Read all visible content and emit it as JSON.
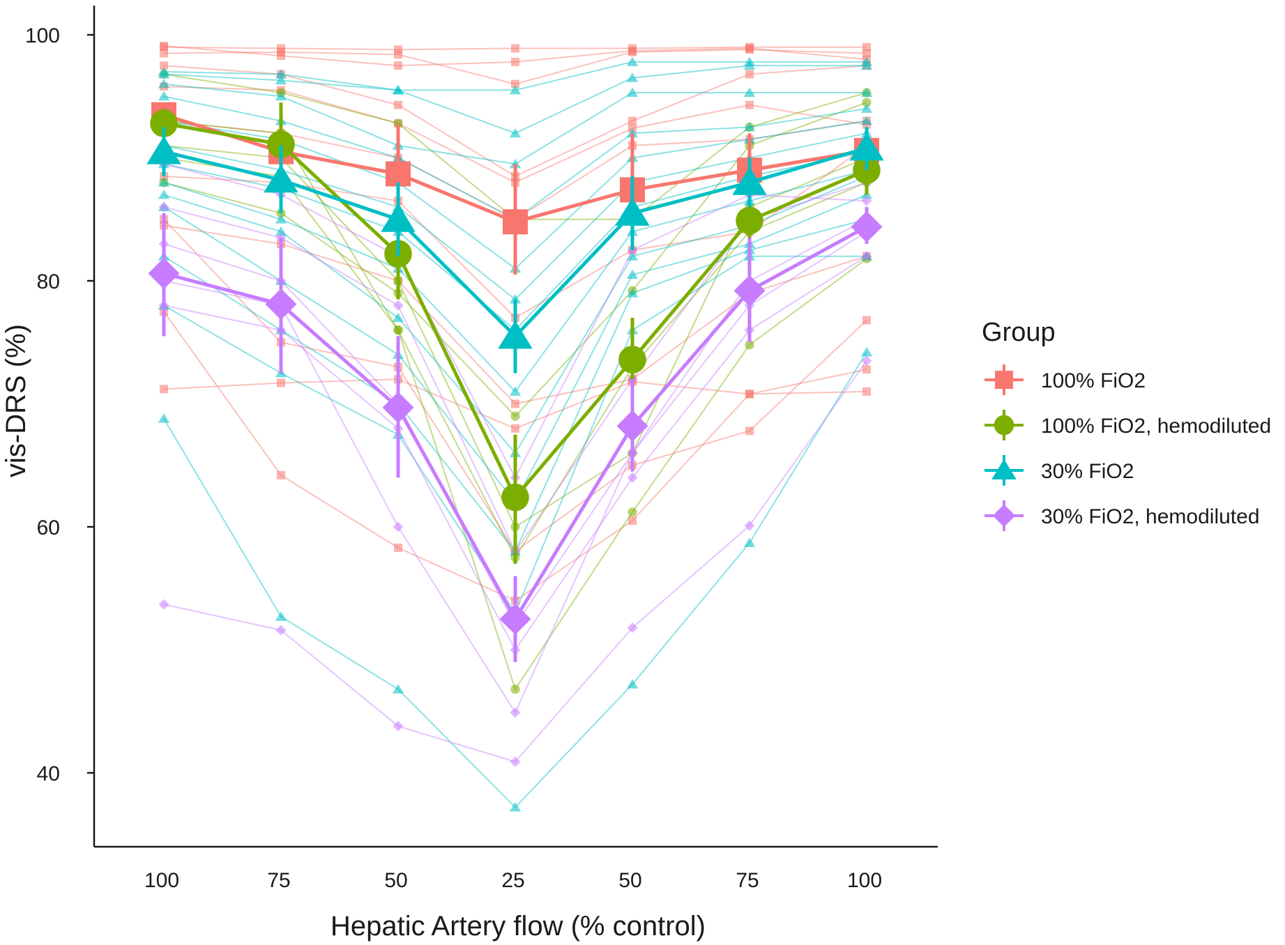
{
  "chart_data": {
    "type": "line",
    "title": "",
    "xlabel": "Hepatic Artery flow (% control)",
    "ylabel": "vis-DRS (%)",
    "x_tick_labels": [
      "100",
      "75",
      "50",
      "25",
      "50",
      "75",
      "100"
    ],
    "y_ticks": [
      40,
      60,
      80,
      100
    ],
    "ylim": [
      33,
      102
    ],
    "grid": false,
    "legend": {
      "title": "Group",
      "position": "right",
      "entries": [
        {
          "name": "100% FiO2",
          "color": "#F8766D",
          "marker": "square"
        },
        {
          "name": "100% FiO2, hemodiluted",
          "color": "#7CAE00",
          "marker": "circle"
        },
        {
          "name": "30% FiO2",
          "color": "#00BFC4",
          "marker": "triangle"
        },
        {
          "name": "30% FiO2, hemodiluted",
          "color": "#C77CFF",
          "marker": "diamond"
        }
      ]
    },
    "series": [
      {
        "name": "100% FiO2",
        "color": "#F8766D",
        "marker": "square",
        "mean": [
          93.5,
          90.5,
          88.7,
          84.8,
          87.4,
          89.0,
          90.6
        ],
        "error": [
          [
            92.5,
            94.5
          ],
          [
            86.5,
            94.5
          ],
          [
            84.7,
            92.7
          ],
          [
            80.5,
            89.5
          ],
          [
            82.5,
            92.0
          ],
          [
            86.0,
            92.0
          ],
          [
            88.5,
            92.5
          ]
        ],
        "individuals": [
          [
            99.0,
            98.9,
            98.8,
            98.9,
            98.9,
            99.0,
            99.0
          ],
          [
            98.5,
            98.6,
            98.4,
            96.0,
            98.6,
            98.8,
            98.5
          ],
          [
            99.1,
            98.3,
            97.5,
            97.8,
            98.7,
            98.9,
            98.0
          ],
          [
            97.5,
            96.8,
            94.3,
            88.5,
            93.0,
            96.8,
            97.5
          ],
          [
            95.8,
            95.5,
            92.8,
            88.0,
            92.4,
            94.3,
            92.7
          ],
          [
            93.0,
            92.0,
            90.0,
            85.0,
            91.0,
            91.5,
            93.0
          ],
          [
            88.5,
            88.0,
            86.5,
            77.0,
            82.5,
            84.0,
            91.0
          ],
          [
            84.5,
            83.0,
            80.0,
            70.0,
            72.0,
            79.0,
            82.0
          ],
          [
            71.2,
            71.7,
            72.0,
            68.0,
            71.8,
            70.8,
            71.0
          ],
          [
            85.0,
            75.0,
            73.0,
            58.0,
            65.0,
            67.8,
            76.8
          ],
          [
            77.5,
            64.2,
            58.3,
            54.0,
            60.5,
            70.8,
            72.8
          ]
        ]
      },
      {
        "name": "100% FiO2, hemodiluted",
        "color": "#7CAE00",
        "marker": "circle",
        "mean": [
          92.8,
          91.1,
          82.2,
          62.4,
          73.6,
          84.9,
          89.0
        ],
        "error": [
          [
            91.5,
            94.0
          ],
          [
            87.5,
            94.5
          ],
          [
            78.5,
            86.5
          ],
          [
            57.0,
            67.5
          ],
          [
            70.0,
            77.0
          ],
          [
            81.5,
            88.5
          ],
          [
            87.0,
            91.0
          ]
        ],
        "individuals": [
          [
            96.8,
            95.3,
            92.8,
            85.0,
            85.0,
            92.5,
            95.3
          ],
          [
            88.0,
            85.5,
            79.0,
            69.0,
            79.2,
            91.0,
            94.5
          ],
          [
            93.0,
            92.0,
            76.0,
            57.5,
            73.0,
            84.0,
            88.0
          ],
          [
            91.0,
            90.0,
            80.0,
            60.0,
            66.0,
            86.0,
            90.0
          ],
          [
            90.0,
            88.5,
            76.0,
            46.8,
            61.2,
            74.8,
            81.8
          ]
        ]
      },
      {
        "name": "30% FiO2",
        "color": "#00BFC4",
        "marker": "triangle",
        "mean": [
          90.5,
          88.2,
          85.0,
          75.5,
          85.5,
          88.0,
          90.8
        ],
        "error": [
          [
            88.5,
            92.5
          ],
          [
            85.5,
            91.0
          ],
          [
            82.0,
            88.0
          ],
          [
            72.5,
            78.5
          ],
          [
            82.5,
            88.5
          ],
          [
            86.0,
            90.0
          ],
          [
            89.0,
            92.5
          ]
        ],
        "individuals": [
          [
            97.0,
            96.8,
            95.5,
            95.5,
            97.8,
            97.8,
            97.8
          ],
          [
            96.8,
            96.3,
            95.5,
            92.0,
            96.5,
            97.5,
            97.5
          ],
          [
            96.0,
            95.0,
            91.0,
            89.5,
            95.3,
            95.3,
            95.3
          ],
          [
            95.0,
            93.0,
            90.0,
            85.0,
            92.0,
            92.5,
            94.0
          ],
          [
            93.0,
            91.5,
            88.0,
            81.0,
            90.0,
            91.5,
            93.0
          ],
          [
            91.0,
            89.0,
            86.0,
            78.5,
            88.0,
            90.0,
            92.0
          ],
          [
            89.5,
            87.5,
            84.0,
            76.0,
            86.0,
            88.5,
            90.5
          ],
          [
            88.0,
            85.0,
            81.0,
            71.0,
            84.0,
            86.5,
            89.0
          ],
          [
            87.0,
            84.0,
            77.0,
            66.0,
            82.0,
            84.5,
            88.5
          ],
          [
            86.0,
            80.0,
            74.0,
            62.0,
            80.5,
            83.0,
            87.0
          ],
          [
            82.0,
            76.0,
            70.0,
            58.0,
            79.0,
            82.5,
            85.0
          ],
          [
            78.0,
            72.5,
            67.5,
            53.0,
            76.0,
            82.0,
            82.0
          ],
          [
            68.8,
            52.7,
            46.8,
            37.2,
            47.2,
            58.7,
            74.2
          ]
        ]
      },
      {
        "name": "30% FiO2, hemodiluted",
        "color": "#C77CFF",
        "marker": "diamond",
        "mean": [
          80.6,
          78.1,
          69.7,
          52.5,
          68.2,
          79.2,
          84.4
        ],
        "error": [
          [
            75.5,
            85.5
          ],
          [
            72.5,
            83.5
          ],
          [
            64.0,
            75.5
          ],
          [
            49.0,
            56.0
          ],
          [
            64.5,
            72.0
          ],
          [
            75.0,
            83.5
          ],
          [
            83.0,
            86.0
          ]
        ],
        "individuals": [
          [
            89.5,
            87.0,
            82.0,
            64.0,
            82.5,
            87.0,
            86.5
          ],
          [
            86.0,
            83.5,
            78.0,
            58.0,
            72.0,
            85.0,
            88.0
          ],
          [
            83.0,
            80.0,
            70.0,
            52.0,
            66.0,
            78.0,
            84.0
          ],
          [
            78.0,
            76.0,
            68.0,
            50.0,
            64.0,
            76.0,
            82.0
          ],
          [
            53.7,
            51.6,
            43.8,
            40.9,
            51.8,
            60.1,
            73.5
          ],
          [
            80.0,
            78.0,
            60.0,
            44.9,
            66.0,
            80.0,
            85.0
          ]
        ]
      }
    ]
  }
}
